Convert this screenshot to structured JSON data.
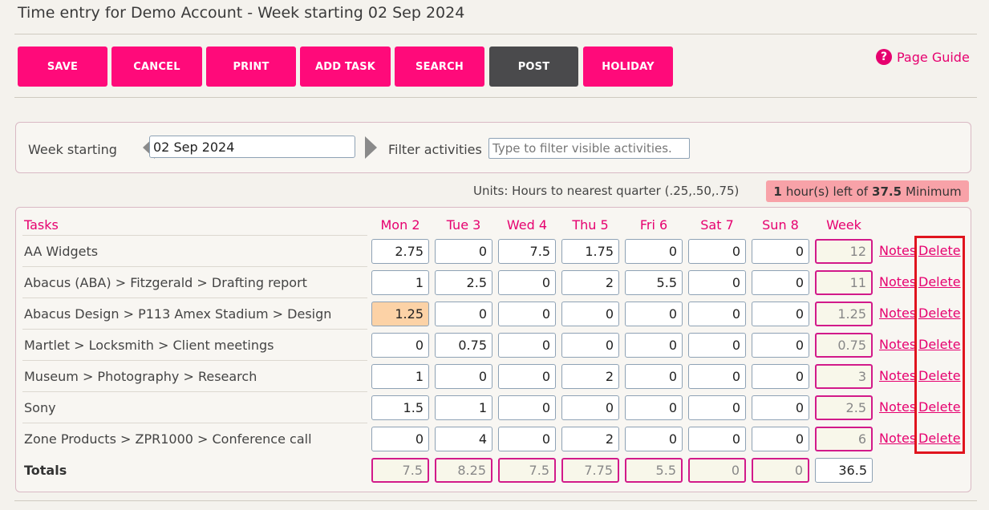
{
  "page": {
    "title": "Time entry for Demo Account - Week starting 02 Sep 2024"
  },
  "toolbar": {
    "buttons": [
      "SAVE",
      "CANCEL",
      "PRINT",
      "ADD TASK",
      "SEARCH",
      "POST",
      "HOLIDAY"
    ],
    "page_guide": "Page Guide"
  },
  "filters": {
    "week_label": "Week starting",
    "week_value": "02 Sep 2024",
    "filter_label": "Filter activities",
    "filter_placeholder": "Type to filter visible activities."
  },
  "status": {
    "units": "Units: Hours to nearest quarter (.25,.50,.75)",
    "hours_left_num": "1",
    "hours_left_text": "hour(s) left of",
    "minimum_num": "37.5",
    "minimum_text": "Minimum"
  },
  "grid": {
    "tasks_header": "Tasks",
    "days": [
      "Mon 2",
      "Tue 3",
      "Wed 4",
      "Thu 5",
      "Fri 6",
      "Sat 7",
      "Sun 8"
    ],
    "week_header": "Week",
    "notes_label": "Notes",
    "delete_label": "Delete",
    "rows": [
      {
        "task": "AA Widgets",
        "hours": [
          "2.75",
          "0",
          "7.5",
          "1.75",
          "0",
          "0",
          "0"
        ],
        "week": "12"
      },
      {
        "task": "Abacus (ABA) > Fitzgerald > Drafting report",
        "hours": [
          "1",
          "2.5",
          "0",
          "2",
          "5.5",
          "0",
          "0"
        ],
        "week": "11"
      },
      {
        "task": "Abacus Design > P113 Amex Stadium > Design",
        "hours": [
          "1.25",
          "0",
          "0",
          "0",
          "0",
          "0",
          "0"
        ],
        "week": "1.25"
      },
      {
        "task": "Martlet > Locksmith > Client meetings",
        "hours": [
          "0",
          "0.75",
          "0",
          "0",
          "0",
          "0",
          "0"
        ],
        "week": "0.75"
      },
      {
        "task": "Museum > Photography > Research",
        "hours": [
          "1",
          "0",
          "0",
          "2",
          "0",
          "0",
          "0"
        ],
        "week": "3"
      },
      {
        "task": "Sony",
        "hours": [
          "1.5",
          "1",
          "0",
          "0",
          "0",
          "0",
          "0"
        ],
        "week": "2.5"
      },
      {
        "task": "Zone Products > ZPR1000 > Conference call",
        "hours": [
          "0",
          "4",
          "0",
          "2",
          "0",
          "0",
          "0"
        ],
        "week": "6"
      }
    ],
    "totals_label": "Totals",
    "totals": [
      "7.5",
      "8.25",
      "7.5",
      "7.75",
      "5.5",
      "0",
      "0"
    ],
    "week_total": "36.5"
  }
}
